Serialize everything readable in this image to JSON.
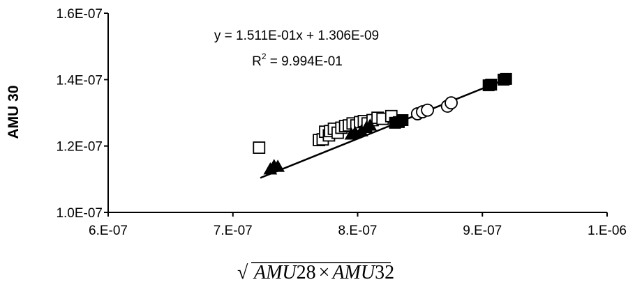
{
  "chart_data": {
    "type": "scatter",
    "title": "",
    "ylabel": "AMU 30",
    "xlabel": {
      "radical": "√",
      "a": "AMU",
      "a_num": "28",
      "times": "×",
      "b": "AMU",
      "b_num": "32"
    },
    "xlim": [
      6e-07,
      1e-06
    ],
    "ylim": [
      1e-07,
      1.6e-07
    ],
    "x_ticks": [
      6e-07,
      7e-07,
      8e-07,
      9e-07,
      1e-06
    ],
    "x_tick_labels": [
      "6.E-07",
      "7.E-07",
      "8.E-07",
      "9.E-07",
      "1.E-06"
    ],
    "y_ticks": [
      1e-07,
      1.2e-07,
      1.4e-07,
      1.6e-07
    ],
    "y_tick_labels": [
      "1.0E-07",
      "1.2E-07",
      "1.4E-07",
      "1.6E-07"
    ],
    "grid": false,
    "legend": "none",
    "annotations": {
      "equation": "y = 1.511E-01x + 1.306E-09",
      "r2_prefix": "R",
      "r2_sup": "2",
      "r2_value": " = 9.994E-01"
    },
    "trendline": {
      "slope": 0.1511,
      "intercept": 1.306e-09,
      "x_range": [
        7.22e-07,
        9.15e-07
      ]
    },
    "series": [
      {
        "marker": "open-square",
        "x": [
          7.21e-07,
          7.69e-07,
          7.72e-07,
          7.74e-07,
          7.77e-07,
          7.78e-07,
          7.81e-07,
          7.84e-07,
          7.87e-07,
          7.9e-07,
          7.93e-07,
          7.96e-07,
          7.99e-07,
          8.02e-07,
          8.05e-07,
          8.08e-07,
          8.12e-07,
          8.16e-07,
          8.2e-07,
          8.27e-07
        ],
        "y": [
          1.195e-07,
          1.218e-07,
          1.22e-07,
          1.243e-07,
          1.232e-07,
          1.245e-07,
          1.252e-07,
          1.24e-07,
          1.255e-07,
          1.26e-07,
          1.262e-07,
          1.268e-07,
          1.262e-07,
          1.272e-07,
          1.275e-07,
          1.268e-07,
          1.278e-07,
          1.285e-07,
          1.282e-07,
          1.29e-07
        ]
      },
      {
        "marker": "filled-triangle",
        "x": [
          7.3e-07,
          7.33e-07,
          7.36e-07,
          7.95e-07,
          7.98e-07,
          8.03e-07,
          8.07e-07,
          8.1e-07
        ],
        "y": [
          1.13e-07,
          1.14e-07,
          1.138e-07,
          1.235e-07,
          1.24e-07,
          1.245e-07,
          1.255e-07,
          1.262e-07
        ]
      },
      {
        "marker": "filled-square",
        "x": [
          8.3e-07,
          8.33e-07,
          8.36e-07,
          9.05e-07,
          9.07e-07,
          9.17e-07,
          9.19e-07
        ],
        "y": [
          1.27e-07,
          1.272e-07,
          1.278e-07,
          1.383e-07,
          1.385e-07,
          1.4e-07,
          1.402e-07
        ]
      },
      {
        "marker": "open-circle",
        "x": [
          8.48e-07,
          8.52e-07,
          8.56e-07,
          8.72e-07,
          8.75e-07
        ],
        "y": [
          1.297e-07,
          1.303e-07,
          1.308e-07,
          1.32e-07,
          1.33e-07
        ]
      }
    ]
  }
}
